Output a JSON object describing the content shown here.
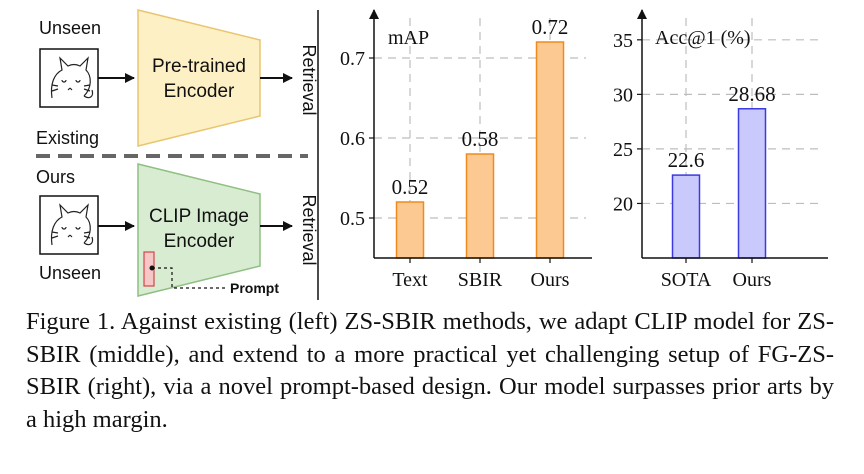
{
  "diagram": {
    "existing_label": "Existing",
    "ours_label": "Ours",
    "top_input_label": "Unseen",
    "bottom_input_label": "Unseen",
    "top_encoder": [
      "Pre-trained",
      "Encoder"
    ],
    "bottom_encoder": [
      "CLIP Image",
      "Encoder"
    ],
    "retrieval_top": "Retrieval",
    "retrieval_bottom": "Retrieval",
    "prompt_label": "Prompt",
    "colors": {
      "top_encoder_fill": "#fdf0c4",
      "top_encoder_stroke": "#e8c670",
      "bottom_encoder_fill": "#d8ecd2",
      "bottom_encoder_stroke": "#8fbf82",
      "prompt_fill": "#f7c6c6",
      "prompt_stroke": "#d04848"
    }
  },
  "chart_data": [
    {
      "type": "bar",
      "title": "mAP",
      "categories": [
        "Text",
        "SBIR",
        "Ours"
      ],
      "values": [
        0.52,
        0.58,
        0.72
      ],
      "value_labels": [
        "0.52",
        "0.58",
        "0.72"
      ],
      "yticks": [
        "0.5",
        "0.6",
        "0.7"
      ],
      "ytick_values": [
        0.5,
        0.6,
        0.7
      ],
      "ylim": [
        0.45,
        0.75
      ],
      "grid": true,
      "bar_fill": "#fdc992",
      "bar_stroke": "#f08a1e"
    },
    {
      "type": "bar",
      "title": "Acc@1 (%)",
      "categories": [
        "SOTA",
        "Ours"
      ],
      "values": [
        22.6,
        28.68
      ],
      "value_labels": [
        "22.6",
        "28.68"
      ],
      "yticks": [
        "20",
        "25",
        "30",
        "35"
      ],
      "ytick_values": [
        20,
        25,
        30,
        35
      ],
      "ylim": [
        15,
        37
      ],
      "grid": true,
      "bar_fill": "#c9c9fb",
      "bar_stroke": "#3a3ae0"
    }
  ],
  "caption": "Figure 1. Against existing (left) ZS-SBIR methods, we adapt CLIP model for ZS-SBIR (middle), and extend to a more practical yet challenging setup of FG-ZS-SBIR (right), via a novel prompt-based design. Our model surpasses prior arts by a high margin."
}
